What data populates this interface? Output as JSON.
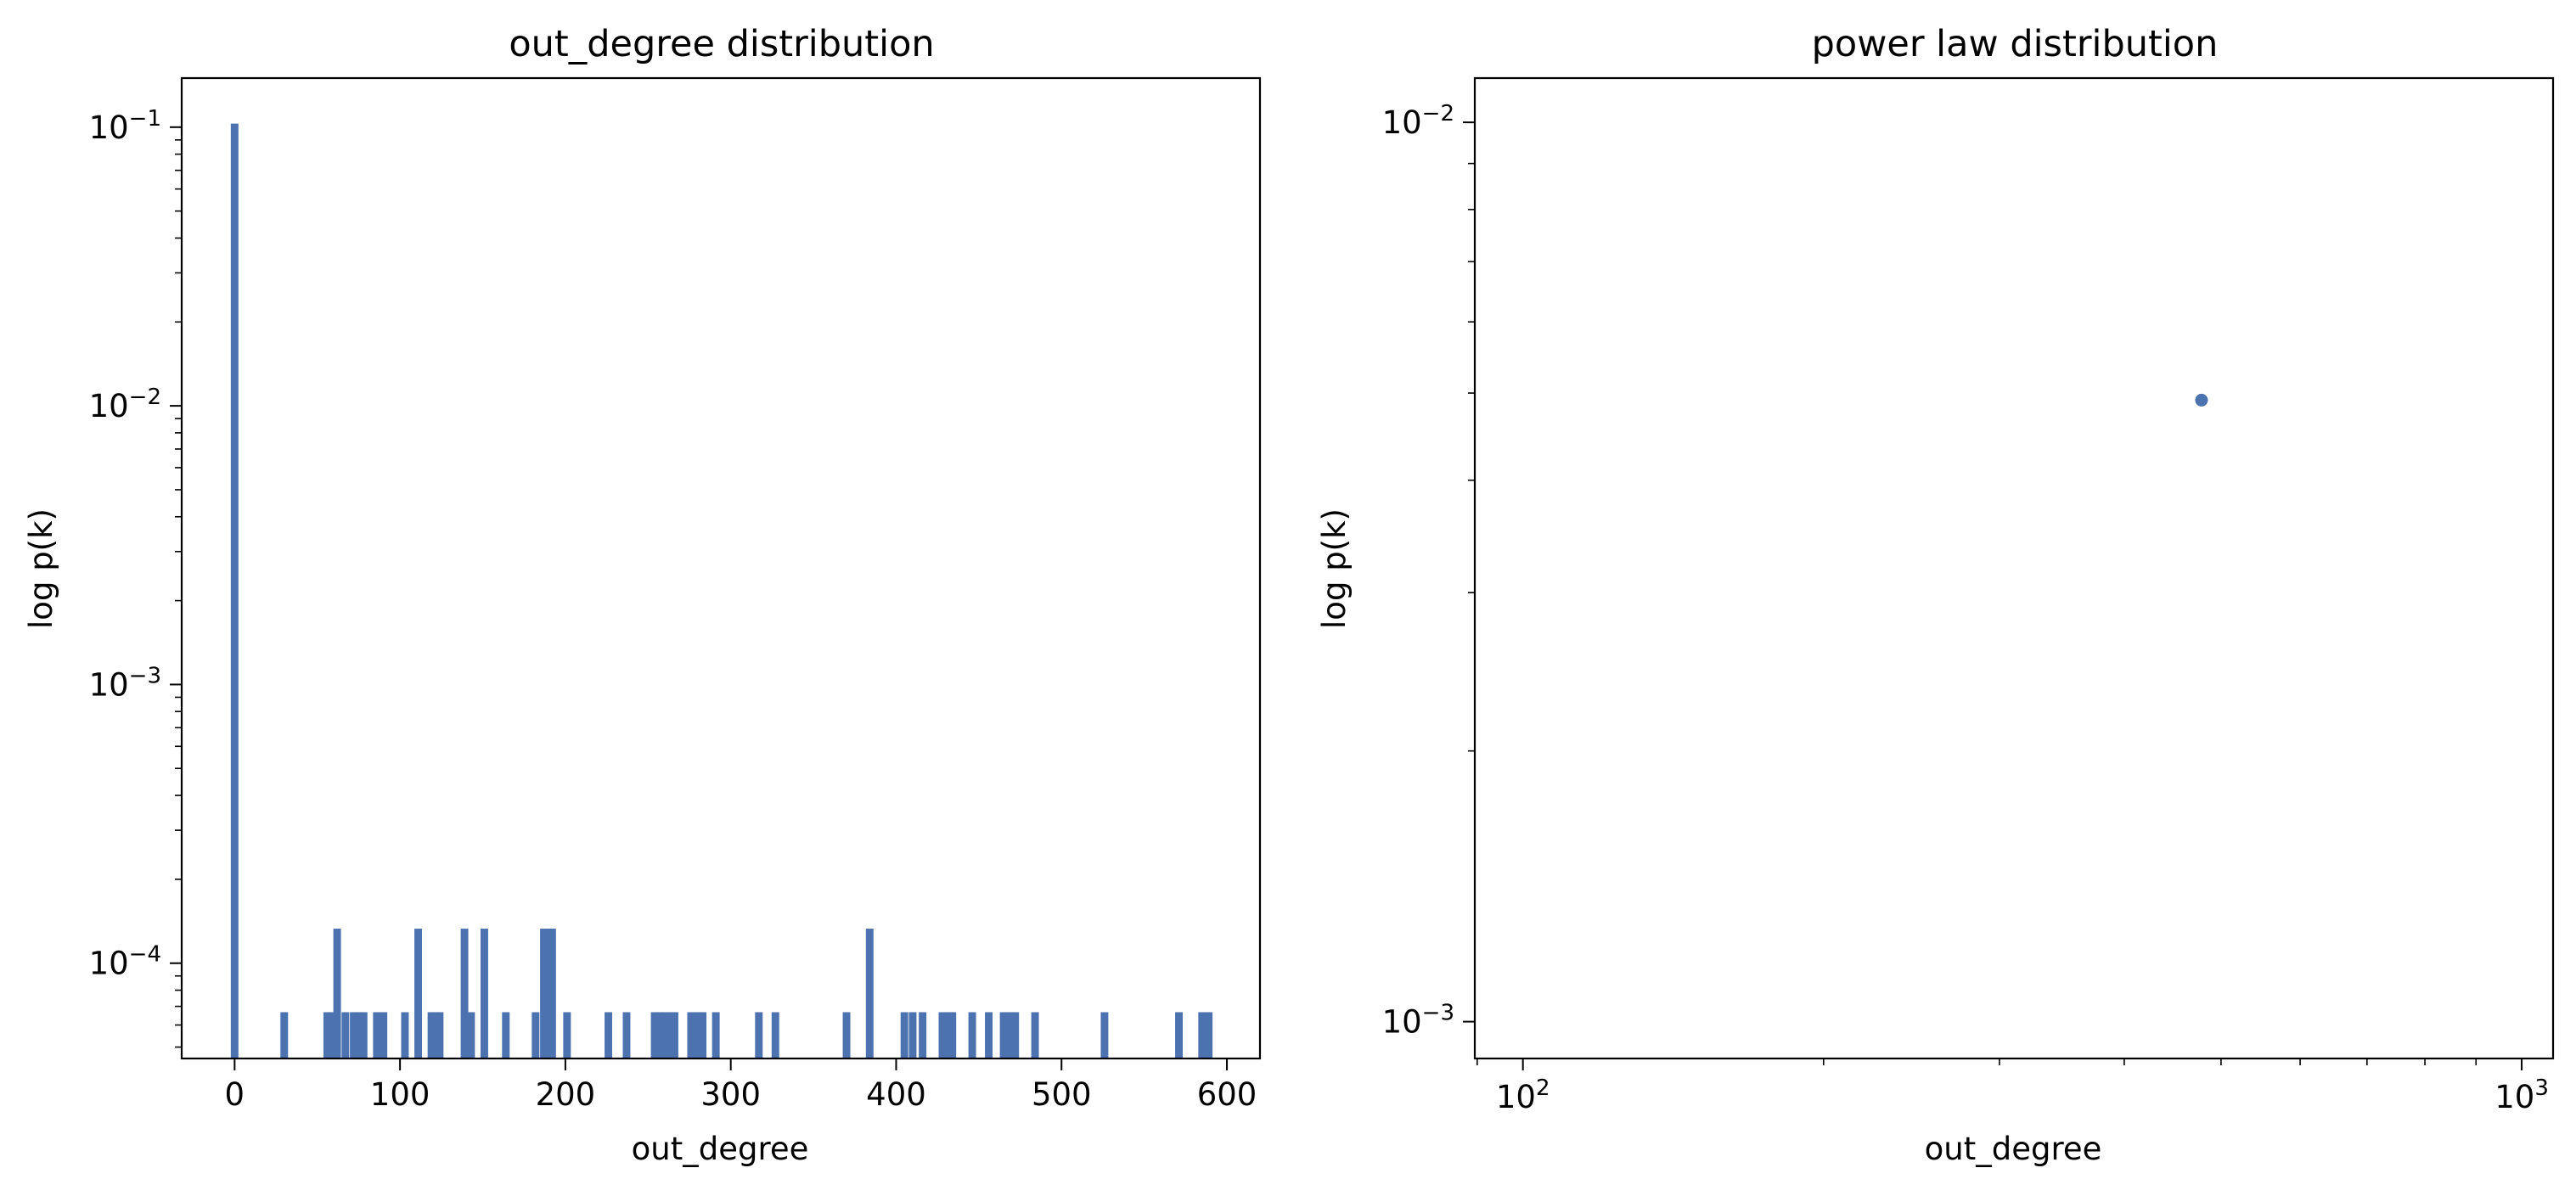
{
  "chart_data": [
    {
      "type": "bar",
      "title": "out_degree distribution",
      "xlabel": "out_degree",
      "ylabel": "log p(k)",
      "x_scale": "linear",
      "y_scale": "log",
      "xlim": [
        -32,
        620
      ],
      "ylim": [
        4.55e-05,
        0.15
      ],
      "x_ticks": [
        0,
        100,
        200,
        300,
        400,
        500,
        600
      ],
      "x_tick_labels": [
        "0",
        "100",
        "200",
        "300",
        "400",
        "500",
        "600"
      ],
      "y_ticks": [
        0.0001,
        0.001,
        0.01,
        0.1
      ],
      "y_tick_labels": [
        {
          "base": "10",
          "exp": "−4"
        },
        {
          "base": "10",
          "exp": "−3"
        },
        {
          "base": "10",
          "exp": "−2"
        },
        {
          "base": "10",
          "exp": "−1"
        }
      ],
      "bin_width": 4.6,
      "color": "#4c72b0",
      "grid": false,
      "x": [
        0,
        30,
        56,
        59,
        62,
        67,
        72,
        75,
        78,
        86,
        90,
        103,
        111,
        119,
        122,
        124,
        139,
        143,
        151,
        164,
        182,
        187,
        189,
        192,
        201,
        226,
        237,
        254,
        257,
        260,
        264,
        266,
        276,
        280,
        283,
        291,
        317,
        327,
        370,
        384,
        405,
        410,
        416,
        428,
        432,
        434,
        446,
        456,
        465,
        469,
        472,
        484,
        526,
        571,
        585,
        589
      ],
      "values": [
        0.103,
        6.67e-05,
        6.67e-05,
        6.67e-05,
        0.000133,
        6.67e-05,
        6.67e-05,
        6.67e-05,
        6.67e-05,
        6.67e-05,
        6.67e-05,
        6.67e-05,
        0.000133,
        6.67e-05,
        6.67e-05,
        6.67e-05,
        0.000133,
        6.67e-05,
        0.000133,
        6.67e-05,
        6.67e-05,
        0.000133,
        0.000133,
        0.000133,
        6.67e-05,
        6.67e-05,
        6.67e-05,
        6.67e-05,
        6.67e-05,
        6.67e-05,
        6.67e-05,
        6.67e-05,
        6.67e-05,
        6.67e-05,
        6.67e-05,
        6.67e-05,
        6.67e-05,
        6.67e-05,
        6.67e-05,
        0.000133,
        6.67e-05,
        6.67e-05,
        6.67e-05,
        6.67e-05,
        6.67e-05,
        6.67e-05,
        6.67e-05,
        6.67e-05,
        6.67e-05,
        6.67e-05,
        6.67e-05,
        6.67e-05,
        6.67e-05,
        6.67e-05,
        6.67e-05,
        6.67e-05
      ]
    },
    {
      "type": "scatter",
      "title": "power law distribution",
      "xlabel": "out_degree",
      "ylabel": "log p(k)",
      "x_scale": "log",
      "y_scale": "log",
      "xlim": [
        89.5,
        1075
      ],
      "ylim": [
        0.00091,
        0.0112
      ],
      "x_ticks": [
        100,
        1000
      ],
      "x_tick_labels": [
        {
          "base": "10",
          "exp": "2"
        },
        {
          "base": "10",
          "exp": "3"
        }
      ],
      "y_ticks": [
        0.001,
        0.01
      ],
      "y_tick_labels": [
        {
          "base": "10",
          "exp": "−3"
        },
        {
          "base": "10",
          "exp": "−2"
        }
      ],
      "color": "#4c72b0",
      "grid": false,
      "points": [
        {
          "x": 478,
          "y": 0.00491
        }
      ]
    }
  ]
}
